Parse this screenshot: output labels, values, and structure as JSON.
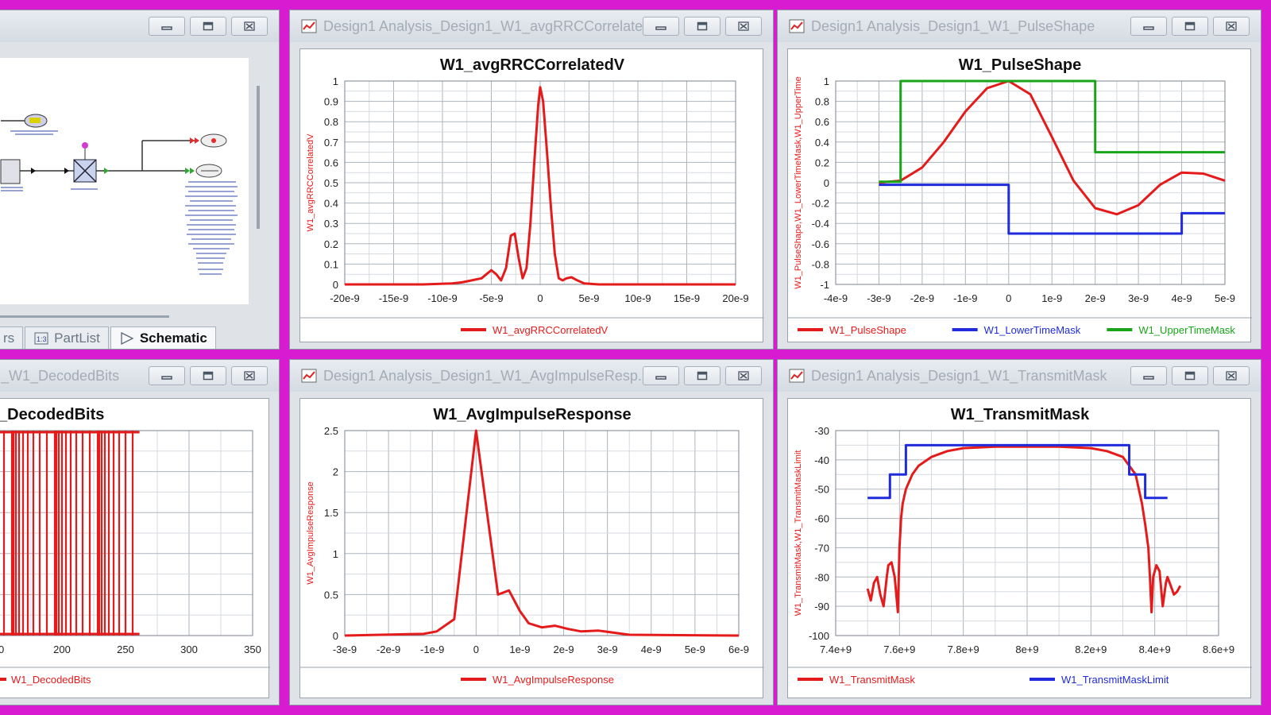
{
  "windows": {
    "schematic": {
      "title": "",
      "tabs": [
        "rs",
        "PartList",
        "Schematic"
      ]
    },
    "rrc": {
      "title": "Design1 Analysis_Design1_W1_avgRRCCorrelate..."
    },
    "pulse": {
      "title": "Design1 Analysis_Design1_W1_PulseShape"
    },
    "decoded": {
      "title": "_W1_DecodedBits"
    },
    "impulse": {
      "title": "Design1 Analysis_Design1_W1_AvgImpulseResp..."
    },
    "mask": {
      "title": "Design1 Analysis_Design1_W1_TransmitMask"
    }
  },
  "colors": {
    "red": "#e51b1b",
    "blue": "#1f2bdc",
    "green": "#19a519",
    "window_bg": "#dfe3e8",
    "frame": "#d81bd0"
  },
  "chart_data": [
    {
      "id": "rrc",
      "type": "line",
      "title": "W1_avgRRCCorrelatedV",
      "ylabel": "W1_avgRRCCorrelatedV",
      "xlabel": "",
      "xticks": [
        "-20e-9",
        "-15e-9",
        "-10e-9",
        "-5e-9",
        "0",
        "5e-9",
        "10e-9",
        "15e-9",
        "20e-9"
      ],
      "yticks": [
        "0",
        "0.1",
        "0.2",
        "0.3",
        "0.4",
        "0.5",
        "0.6",
        "0.7",
        "0.8",
        "0.9",
        "1"
      ],
      "xlim": [
        -2e-08,
        2e-08
      ],
      "ylim": [
        0,
        1
      ],
      "series": [
        {
          "name": "W1_avgRRCCorrelatedV",
          "color": "red",
          "x": [
            -2e-08,
            -1.2e-08,
            -9e-09,
            -8e-09,
            -7e-09,
            -6e-09,
            -5.5e-09,
            -5e-09,
            -4.5e-09,
            -4e-09,
            -3.5e-09,
            -3e-09,
            -2.6e-09,
            -2.2e-09,
            -1.8e-09,
            -1.4e-09,
            -1e-09,
            -6e-10,
            -2e-10,
            0,
            3e-10,
            7e-10,
            1.1e-09,
            1.5e-09,
            1.9e-09,
            2.3e-09,
            2.7e-09,
            3.2e-09,
            3.8e-09,
            4.5e-09,
            6e-09,
            1e-08,
            2e-08
          ],
          "y": [
            0,
            0,
            0.005,
            0.01,
            0.02,
            0.03,
            0.05,
            0.07,
            0.05,
            0.02,
            0.08,
            0.24,
            0.25,
            0.13,
            0.03,
            0.08,
            0.3,
            0.6,
            0.88,
            0.97,
            0.9,
            0.65,
            0.38,
            0.15,
            0.03,
            0.02,
            0.03,
            0.035,
            0.02,
            0.005,
            0,
            0,
            0
          ]
        }
      ],
      "legend": "bottom"
    },
    {
      "id": "pulse",
      "type": "line",
      "title": "W1_PulseShape",
      "ylabel": "W1_PulseShape,W1_LowerTimeMask,W1_UpperTime",
      "xlabel": "",
      "xticks": [
        "-4e-9",
        "-3e-9",
        "-2e-9",
        "-1e-9",
        "0",
        "1e-9",
        "2e-9",
        "3e-9",
        "4e-9",
        "5e-9"
      ],
      "yticks": [
        "-1",
        "-0.8",
        "-0.6",
        "-0.4",
        "-0.2",
        "0",
        "0.2",
        "0.4",
        "0.6",
        "0.8",
        "1"
      ],
      "xlim": [
        -4e-09,
        5e-09
      ],
      "ylim": [
        -1,
        1
      ],
      "series": [
        {
          "name": "W1_PulseShape",
          "color": "red",
          "x": [
            -3e-09,
            -2.5e-09,
            -2e-09,
            -1.5e-09,
            -1e-09,
            -5e-10,
            0,
            5e-10,
            1e-09,
            1.5e-09,
            2e-09,
            2.5e-09,
            3e-09,
            3.5e-09,
            4e-09,
            4.5e-09,
            5e-09
          ],
          "y": [
            0,
            0.02,
            0.15,
            0.4,
            0.7,
            0.93,
            1,
            0.87,
            0.45,
            0.02,
            -0.25,
            -0.31,
            -0.22,
            -0.02,
            0.1,
            0.09,
            0.02
          ]
        },
        {
          "name": "W1_LowerTimeMask",
          "color": "blue",
          "x": [
            -3e-09,
            0,
            0,
            4e-09,
            4e-09,
            5e-09
          ],
          "y": [
            -0.02,
            -0.02,
            -0.5,
            -0.5,
            -0.3,
            -0.3
          ]
        },
        {
          "name": "W1_UpperTimeMask",
          "color": "green",
          "x": [
            -3e-09,
            -2.5e-09,
            -2.5e-09,
            2e-09,
            2e-09,
            5e-09
          ],
          "y": [
            0.01,
            0.01,
            1,
            1,
            0.3,
            0.3
          ]
        }
      ],
      "legend": "bottom"
    },
    {
      "id": "decoded",
      "type": "line",
      "title": "_DecodedBits",
      "xticks": [
        "0",
        "200",
        "250",
        "300",
        "350"
      ],
      "xlim": [
        150,
        350
      ],
      "ylim": [
        0,
        1
      ],
      "series": [
        {
          "name": "W1_DecodedBits",
          "color": "red",
          "x_end": 261
        }
      ],
      "legend": "bottom"
    },
    {
      "id": "impulse",
      "type": "line",
      "title": "W1_AvgImpulseResponse",
      "ylabel": "W1_AvgImpulseResponse",
      "xlabel": "",
      "xticks": [
        "-3e-9",
        "-2e-9",
        "-1e-9",
        "0",
        "1e-9",
        "2e-9",
        "3e-9",
        "4e-9",
        "5e-9",
        "6e-9"
      ],
      "yticks": [
        "0",
        "0.5",
        "1",
        "1.5",
        "2",
        "2.5"
      ],
      "xlim": [
        -3e-09,
        6e-09
      ],
      "ylim": [
        0,
        2.5
      ],
      "series": [
        {
          "name": "W1_AvgImpulseResponse",
          "color": "red",
          "x": [
            -3e-09,
            -1.2e-09,
            -9e-10,
            -5e-10,
            0,
            5e-10,
            7.5e-10,
            1e-09,
            1.2e-09,
            1.5e-09,
            1.8e-09,
            2.1e-09,
            2.4e-09,
            2.8e-09,
            3.5e-09,
            6e-09
          ],
          "y": [
            0,
            0.02,
            0.05,
            0.2,
            2.5,
            0.5,
            0.55,
            0.3,
            0.15,
            0.1,
            0.12,
            0.08,
            0.05,
            0.06,
            0.01,
            0
          ]
        }
      ],
      "legend": "bottom"
    },
    {
      "id": "mask",
      "type": "line",
      "title": "W1_TransmitMask",
      "ylabel": "W1_TransmitMask,W1_TransmitMaskLimit",
      "xlabel": "",
      "xticks": [
        "7.4e+9",
        "7.6e+9",
        "7.8e+9",
        "8e+9",
        "8.2e+9",
        "8.4e+9",
        "8.6e+9"
      ],
      "yticks": [
        "-100",
        "-90",
        "-80",
        "-70",
        "-60",
        "-50",
        "-40",
        "-30"
      ],
      "xlim": [
        7400000000.0,
        8600000000.0
      ],
      "ylim": [
        -100,
        -30
      ],
      "series": [
        {
          "name": "W1_TransmitMask",
          "color": "red",
          "x": [
            7500000000.0,
            7510000000.0,
            7520000000.0,
            7530000000.0,
            7540000000.0,
            7550000000.0,
            7560000000.0,
            7565000000.0,
            7575000000.0,
            7585000000.0,
            7595000000.0,
            7600000000.0,
            7605000000.0,
            7610000000.0,
            7620000000.0,
            7640000000.0,
            7660000000.0,
            7700000000.0,
            7750000000.0,
            7800000000.0,
            7900000000.0,
            8000000000.0,
            8100000000.0,
            8200000000.0,
            8250000000.0,
            8300000000.0,
            8340000000.0,
            8360000000.0,
            8370000000.0,
            8380000000.0,
            8385000000.0,
            8390000000.0,
            8395000000.0,
            8405000000.0,
            8415000000.0,
            8425000000.0,
            8435000000.0,
            8440000000.0,
            8450000000.0,
            8460000000.0,
            8470000000.0,
            8480000000.0
          ],
          "y": [
            -84,
            -88,
            -82,
            -80,
            -86,
            -90,
            -80,
            -76,
            -75,
            -80,
            -92,
            -70,
            -60,
            -55,
            -50,
            -45,
            -42,
            -39,
            -37,
            -36,
            -35.5,
            -35.5,
            -35.5,
            -36,
            -37,
            -39,
            -45,
            -55,
            -62,
            -70,
            -80,
            -92,
            -80,
            -76,
            -78,
            -90,
            -82,
            -80,
            -83,
            -86,
            -85,
            -83
          ]
        },
        {
          "name": "W1_TransmitMaskLimit",
          "color": "blue",
          "x": [
            7500000000.0,
            7570000000.0,
            7570000000.0,
            7620000000.0,
            7620000000.0,
            8320000000.0,
            8320000000.0,
            8370000000.0,
            8370000000.0,
            8440000000.0
          ],
          "y": [
            -53,
            -53,
            -45,
            -45,
            -35,
            -35,
            -45,
            -45,
            -53,
            -53
          ]
        }
      ],
      "legend": "bottom"
    }
  ]
}
